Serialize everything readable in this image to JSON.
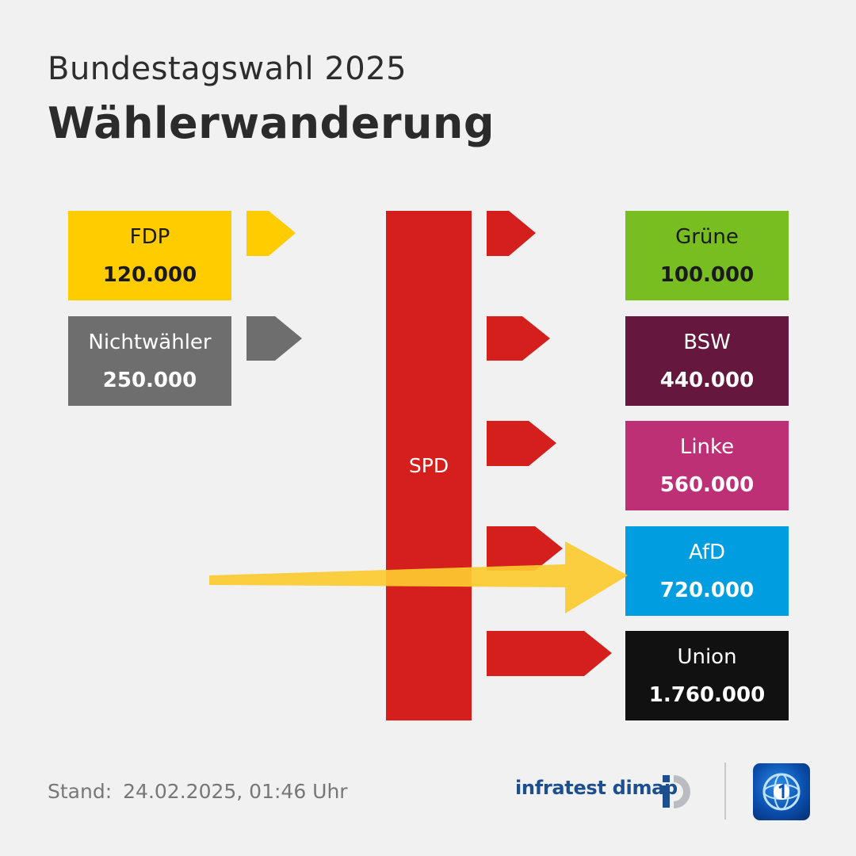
{
  "header": {
    "subtitle": "Bundestagswahl 2025",
    "title": "Wählerwanderung"
  },
  "source_party": {
    "name": "SPD",
    "color": "#d41f1d"
  },
  "inflows": [
    {
      "name": "FDP",
      "value": "120.000",
      "color": "#ffcc00",
      "text_color": "#1a1a1a"
    },
    {
      "name": "Nichtwähler",
      "value": "250.000",
      "color": "#6e6e6e",
      "text_color": "#ffffff"
    }
  ],
  "outflows": [
    {
      "name": "Grüne",
      "value": "100.000",
      "color": "#78be20",
      "text_color": "#1a1a1a"
    },
    {
      "name": "BSW",
      "value": "440.000",
      "color": "#65173d",
      "text_color": "#ffffff"
    },
    {
      "name": "Linke",
      "value": "560.000",
      "color": "#be3075",
      "text_color": "#ffffff"
    },
    {
      "name": "AfD",
      "value": "720.000",
      "color": "#009ee0",
      "text_color": "#ffffff"
    },
    {
      "name": "Union",
      "value": "1.760.000",
      "color": "#111111",
      "text_color": "#ffffff"
    }
  ],
  "highlight": {
    "target": "AfD",
    "color": "#fccb30"
  },
  "footer": {
    "stand_label": "Stand:",
    "stand_date": "24.02.2025, 01:46 Uhr",
    "pollster": "infratest dimap",
    "broadcaster_icon": "tagesschau-globe-icon"
  }
}
